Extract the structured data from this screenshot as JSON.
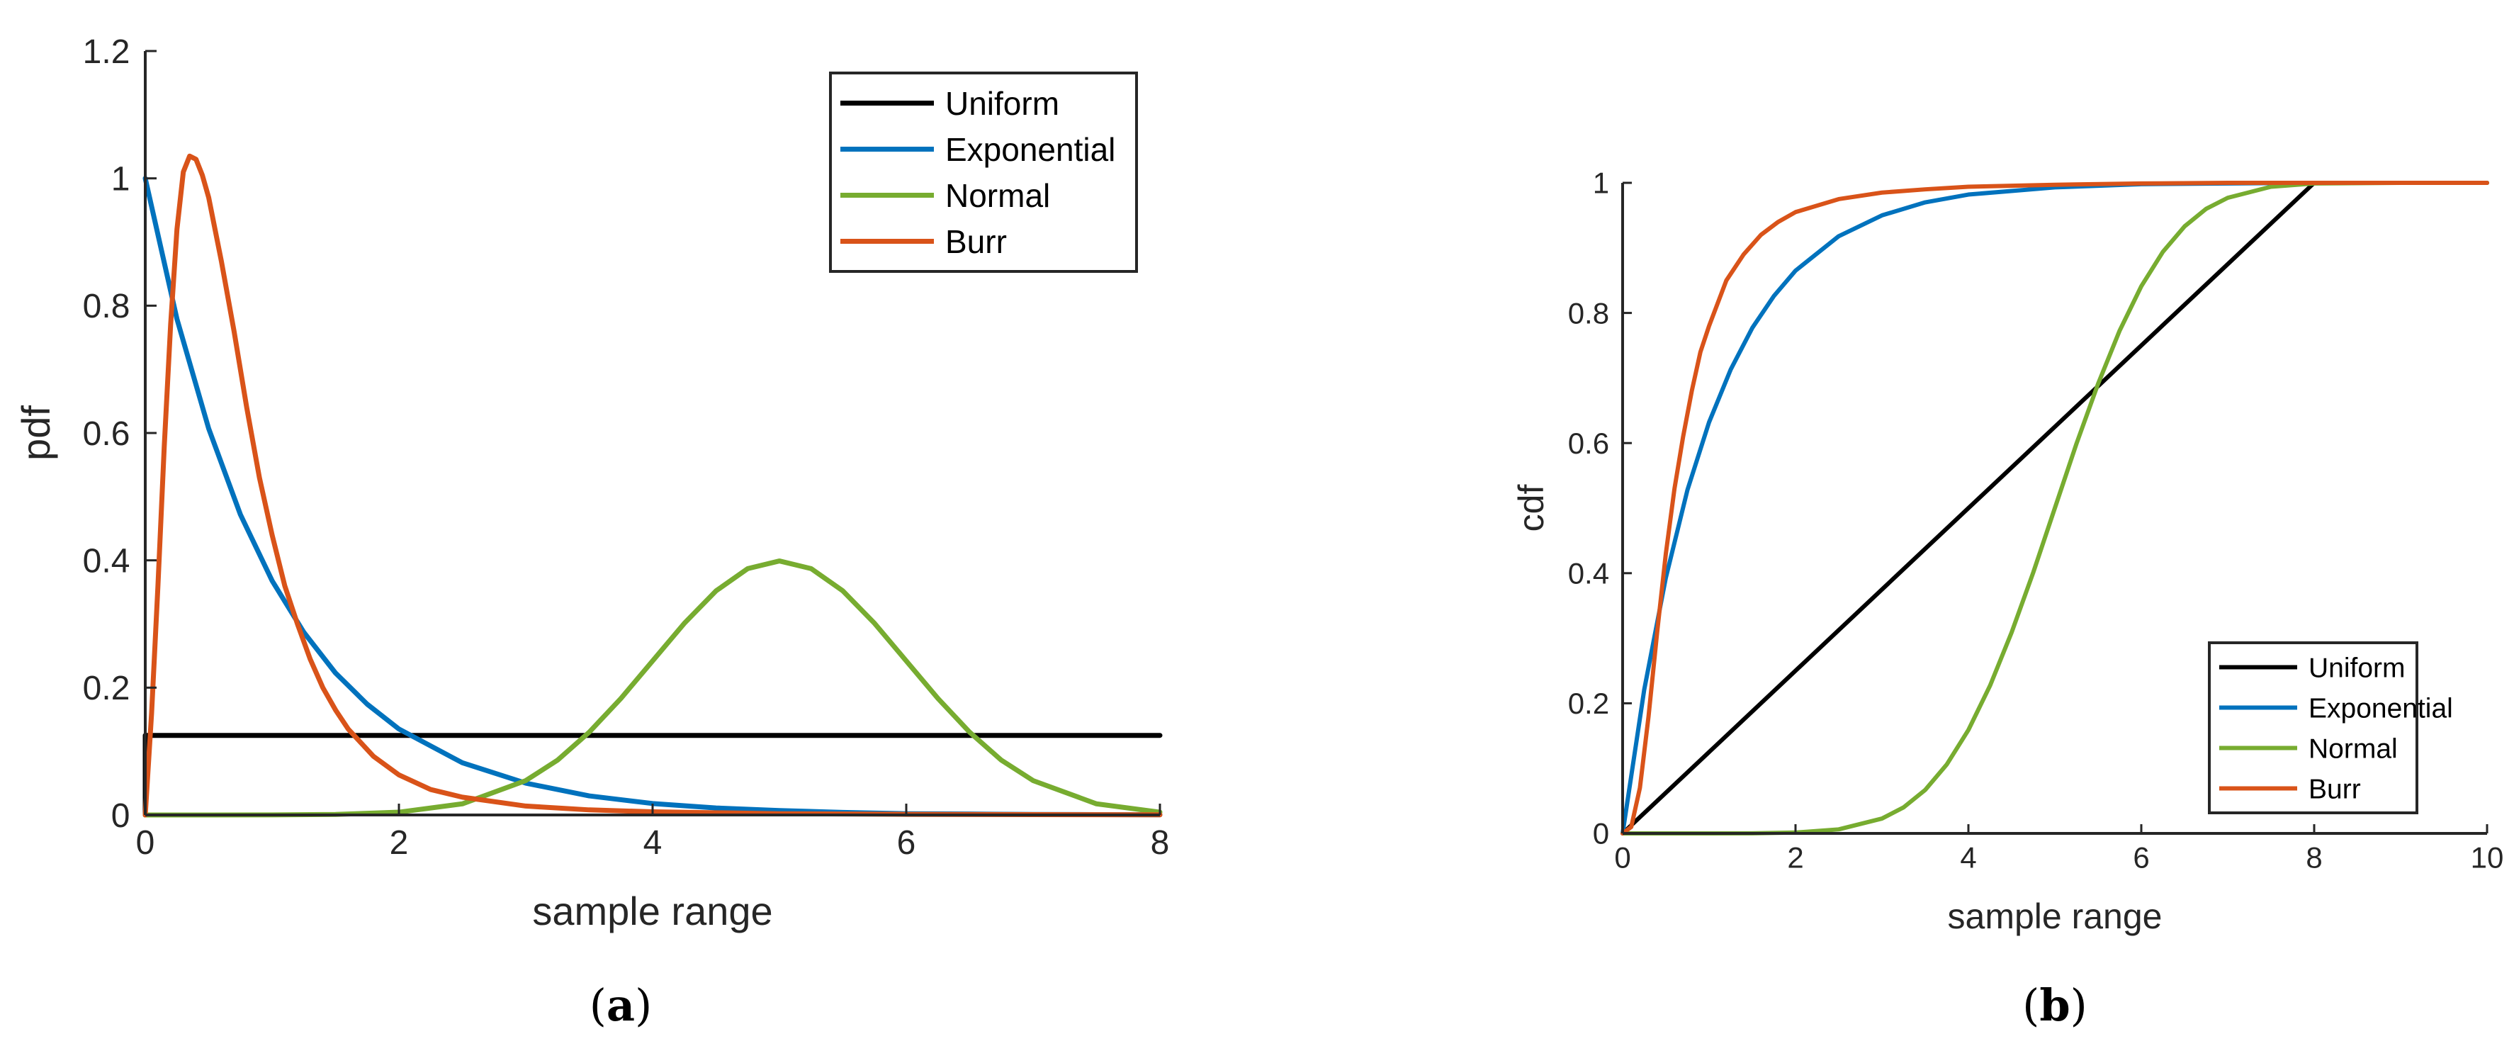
{
  "chart_data": [
    {
      "type": "line",
      "panel": "a",
      "caption": "a",
      "xlabel": "sample range",
      "ylabel": "pdf",
      "xlim": [
        0,
        8
      ],
      "ylim": [
        0,
        1.2
      ],
      "xticks": [
        0,
        2,
        4,
        6,
        8
      ],
      "xtick_labels": [
        "0",
        "2",
        "4",
        "6",
        "8"
      ],
      "yticks": [
        0,
        0.2,
        0.4,
        0.6,
        0.8,
        1,
        1.2
      ],
      "ytick_labels": [
        "0",
        "0.2",
        "0.4",
        "0.6",
        "0.8",
        "1",
        "1.2"
      ],
      "grid": false,
      "legend_position": "top-right",
      "series": [
        {
          "name": "Uniform",
          "color": "#000000",
          "x": [
            0,
            0,
            8
          ],
          "y": [
            0,
            0.125,
            0.125
          ]
        },
        {
          "name": "Exponential",
          "color": "#0072BD",
          "x": [
            0,
            0.25,
            0.5,
            0.75,
            1,
            1.25,
            1.5,
            1.75,
            2,
            2.5,
            3,
            3.5,
            4,
            4.5,
            5,
            5.5,
            6,
            6.5,
            7,
            7.5,
            8
          ],
          "y": [
            1,
            0.779,
            0.607,
            0.472,
            0.368,
            0.287,
            0.223,
            0.174,
            0.135,
            0.082,
            0.05,
            0.03,
            0.018,
            0.011,
            0.007,
            0.004,
            0.002,
            0.0015,
            0.0009,
            0.0006,
            0.0003
          ]
        },
        {
          "name": "Normal",
          "color": "#77AC30",
          "x": [
            0,
            0.5,
            1,
            1.5,
            2,
            2.5,
            3,
            3.25,
            3.5,
            3.75,
            4,
            4.25,
            4.5,
            4.75,
            5,
            5.25,
            5.5,
            5.75,
            6,
            6.25,
            6.5,
            6.75,
            7,
            7.5,
            8
          ],
          "y": [
            0,
            0,
            0.0001,
            0.0009,
            0.0044,
            0.0175,
            0.054,
            0.086,
            0.13,
            0.183,
            0.242,
            0.301,
            0.352,
            0.387,
            0.399,
            0.387,
            0.352,
            0.301,
            0.242,
            0.183,
            0.13,
            0.086,
            0.054,
            0.0175,
            0.0044
          ]
        },
        {
          "name": "Burr",
          "color": "#D95319",
          "x": [
            0,
            0.05,
            0.1,
            0.15,
            0.2,
            0.25,
            0.3,
            0.35,
            0.4,
            0.45,
            0.5,
            0.55,
            0.6,
            0.7,
            0.8,
            0.9,
            1,
            1.1,
            1.2,
            1.3,
            1.4,
            1.5,
            1.6,
            1.8,
            2,
            2.25,
            2.5,
            3,
            3.5,
            4,
            5,
            6,
            7,
            8
          ],
          "y": [
            0,
            0.16,
            0.36,
            0.58,
            0.77,
            0.92,
            1.01,
            1.035,
            1.03,
            1.005,
            0.97,
            0.92,
            0.87,
            0.76,
            0.64,
            0.53,
            0.44,
            0.36,
            0.3,
            0.245,
            0.2,
            0.165,
            0.135,
            0.092,
            0.063,
            0.04,
            0.028,
            0.014,
            0.008,
            0.005,
            0.002,
            0.001,
            0.0005,
            0.0003
          ]
        }
      ]
    },
    {
      "type": "line",
      "panel": "b",
      "caption": "b",
      "xlabel": "sample range",
      "ylabel": "cdf",
      "xlim": [
        0,
        10
      ],
      "ylim": [
        0,
        1
      ],
      "xticks": [
        0,
        2,
        4,
        6,
        8,
        10
      ],
      "xtick_labels": [
        "0",
        "2",
        "4",
        "6",
        "8",
        "10"
      ],
      "yticks": [
        0,
        0.2,
        0.4,
        0.6,
        0.8,
        1
      ],
      "ytick_labels": [
        "0",
        "0.2",
        "0.4",
        "0.6",
        "0.8",
        "1"
      ],
      "grid": false,
      "legend_position": "bottom-right",
      "series": [
        {
          "name": "Uniform",
          "color": "#000000",
          "x": [
            0,
            8,
            10
          ],
          "y": [
            0,
            1,
            1
          ]
        },
        {
          "name": "Exponential",
          "color": "#0072BD",
          "x": [
            0,
            0.25,
            0.5,
            0.75,
            1,
            1.25,
            1.5,
            1.75,
            2,
            2.5,
            3,
            3.5,
            4,
            5,
            6,
            7,
            8,
            9,
            10
          ],
          "y": [
            0,
            0.221,
            0.393,
            0.528,
            0.632,
            0.713,
            0.777,
            0.826,
            0.865,
            0.918,
            0.95,
            0.97,
            0.982,
            0.993,
            0.998,
            0.999,
            1,
            1,
            1
          ]
        },
        {
          "name": "Normal",
          "color": "#77AC30",
          "x": [
            0,
            1,
            1.5,
            2,
            2.5,
            3,
            3.25,
            3.5,
            3.75,
            4,
            4.25,
            4.5,
            4.75,
            5,
            5.25,
            5.5,
            5.75,
            6,
            6.25,
            6.5,
            6.75,
            7,
            7.5,
            8,
            9,
            10
          ],
          "y": [
            0,
            0,
            0.0002,
            0.0013,
            0.0062,
            0.0228,
            0.04,
            0.0668,
            0.106,
            0.159,
            0.227,
            0.309,
            0.401,
            0.5,
            0.599,
            0.691,
            0.773,
            0.841,
            0.894,
            0.933,
            0.96,
            0.977,
            0.994,
            0.999,
            1,
            1
          ]
        },
        {
          "name": "Burr",
          "color": "#D95319",
          "x": [
            0,
            0.1,
            0.2,
            0.3,
            0.4,
            0.5,
            0.6,
            0.7,
            0.8,
            0.9,
            1,
            1.2,
            1.4,
            1.6,
            1.8,
            2,
            2.5,
            3,
            3.5,
            4,
            5,
            6,
            7,
            8,
            10
          ],
          "y": [
            0,
            0.01,
            0.07,
            0.18,
            0.31,
            0.43,
            0.53,
            0.61,
            0.68,
            0.74,
            0.78,
            0.85,
            0.89,
            0.92,
            0.94,
            0.955,
            0.975,
            0.985,
            0.99,
            0.994,
            0.997,
            0.999,
            1,
            1,
            1
          ]
        }
      ]
    }
  ]
}
